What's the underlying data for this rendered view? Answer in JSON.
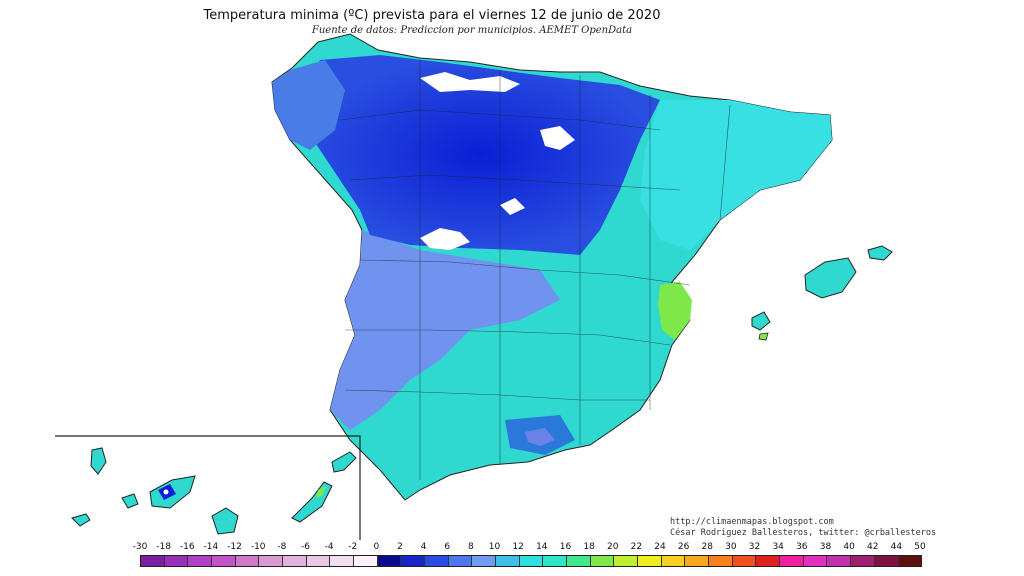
{
  "header": {
    "title": "Temperatura minima (ºC) prevista para el viernes 12 de junio de 2020",
    "subtitle": "Fuente de datos: Prediccion por municipios. AEMET OpenData"
  },
  "credits": {
    "url": "http://climaenmapas.blogspot.com",
    "author": "César Rodriguez Ballesteros, twitter: @crballesteros"
  },
  "scale": {
    "unit": "ºC",
    "labels": [
      "-30",
      "-18",
      "-16",
      "-14",
      "-12",
      "-10",
      "-8",
      "-6",
      "-4",
      "-2",
      "0",
      "2",
      "4",
      "6",
      "8",
      "10",
      "12",
      "14",
      "16",
      "18",
      "20",
      "22",
      "24",
      "26",
      "28",
      "30",
      "32",
      "34",
      "36",
      "38",
      "40",
      "42",
      "44",
      "50"
    ],
    "colors": [
      "#7a1fa2",
      "#9a2fb8",
      "#b040c6",
      "#c256c9",
      "#cf78c9",
      "#d99ad3",
      "#e0b2dc",
      "#e9c8e6",
      "#f1dff0",
      "#fbf2fb",
      "#0a0a8c",
      "#1626c8",
      "#2a4fe0",
      "#4a78ee",
      "#6f9cf0",
      "#40c0e8",
      "#2fe0e0",
      "#2fe6c8",
      "#40e890",
      "#7ee84a",
      "#c0ee30",
      "#eeee20",
      "#f8d020",
      "#f8a820",
      "#f88020",
      "#f05020",
      "#e02020",
      "#f020a0",
      "#e030c0",
      "#c030b0",
      "#a02070",
      "#801040",
      "#601010"
    ]
  },
  "map_regions": {
    "peninsula": "peninsula-map",
    "balearics": "balearic-islands",
    "canaries": "canary-islands"
  },
  "colors": {
    "cold_blue": "#0a1fd6",
    "mid_blue": "#6f8ff0",
    "cyan": "#2fe0e0",
    "teal": "#2ed9c2",
    "green": "#7ee84a",
    "white_peaks": "#ffffff",
    "borders": "#222222"
  }
}
